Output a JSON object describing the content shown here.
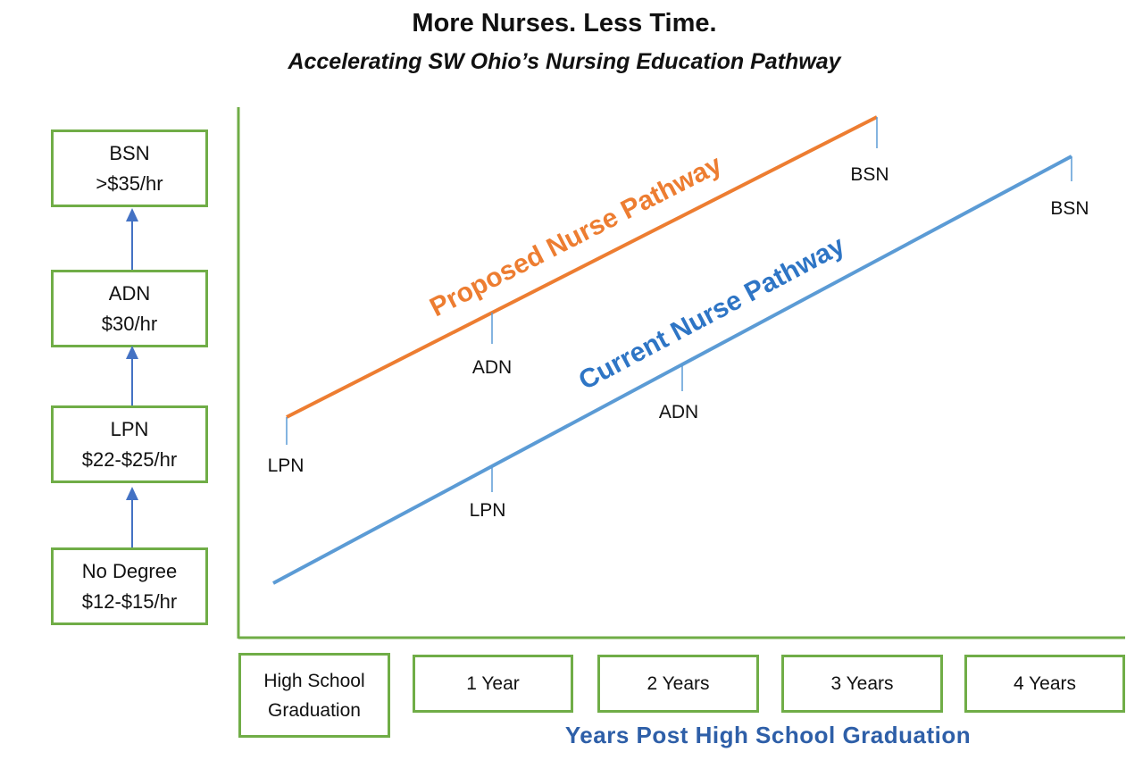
{
  "title": "More Nurses. Less Time.",
  "subtitle": "Accelerating SW Ohio’s Nursing Education Pathway",
  "stages": [
    {
      "name": "BSN",
      "wage": ">$35/hr"
    },
    {
      "name": "ADN",
      "wage": "$30/hr"
    },
    {
      "name": "LPN",
      "wage": "$22-$25/hr"
    },
    {
      "name": "No Degree",
      "wage": "$12-$15/hr"
    }
  ],
  "x_axis": {
    "caption": "Years Post High School Graduation",
    "labels": [
      "High School Graduation",
      "1 Year",
      "2 Years",
      "3 Years",
      "4 Years"
    ]
  },
  "pathways": {
    "proposed": {
      "label": "Proposed Nurse Pathway",
      "color": "#ed7d31",
      "milestones": [
        "LPN",
        "ADN",
        "BSN"
      ]
    },
    "current": {
      "label": "Current Nurse Pathway",
      "color": "#5b9bd5",
      "milestones": [
        "LPN",
        "ADN",
        "BSN"
      ]
    }
  },
  "colors": {
    "box_border": "#70ad47",
    "axis": "#70ad47",
    "arrow": "#4472c4",
    "caption": "#2e5fa8"
  }
}
